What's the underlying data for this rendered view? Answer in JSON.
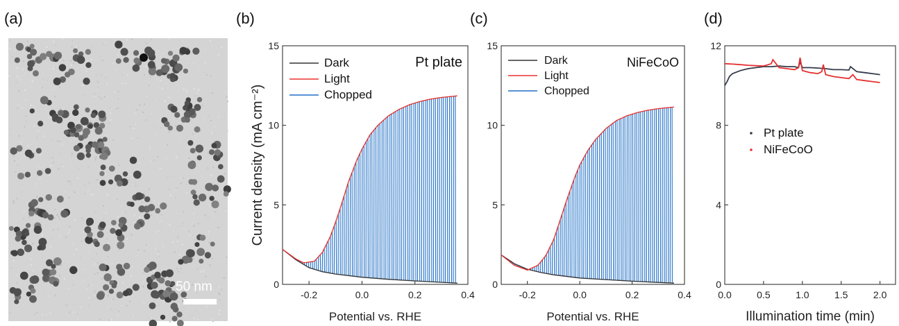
{
  "panels": {
    "a": {
      "label": "(a)",
      "scale_bar": "50 nm"
    },
    "b": {
      "label": "(b)"
    },
    "c": {
      "label": "(c)"
    },
    "d": {
      "label": "(d)"
    }
  },
  "colors": {
    "dark": "#333333",
    "light": "#e8322e",
    "chopped": "#1f6fc5",
    "pt": "#333a48",
    "nife": "#e52f2f"
  },
  "chart_data": [
    {
      "type": "line",
      "panel": "b",
      "annotation": "Pt plate",
      "xlabel": "Potential vs. RHE",
      "ylabel": "Current density (mA cm⁻²)",
      "xlim": [
        -0.3,
        0.4
      ],
      "ylim": [
        0,
        15
      ],
      "xticks": [
        -0.2,
        0.0,
        0.2,
        0.4
      ],
      "yticks": [
        0,
        5,
        10,
        15
      ],
      "xtick_labels": [
        "-0.2",
        "0.0",
        "0.2",
        "0.4"
      ],
      "ytick_labels": [
        "0",
        "5",
        "10",
        "15"
      ],
      "legend": [
        "Dark",
        "Light",
        "Chopped"
      ],
      "legend_position": "top-left",
      "series": [
        {
          "name": "Dark",
          "x": [
            -0.3,
            -0.25,
            -0.2,
            -0.15,
            -0.1,
            0.0,
            0.1,
            0.2,
            0.3,
            0.36
          ],
          "y": [
            2.2,
            1.55,
            1.05,
            0.8,
            0.65,
            0.45,
            0.32,
            0.22,
            0.13,
            0.08
          ]
        },
        {
          "name": "Light",
          "x": [
            -0.3,
            -0.25,
            -0.22,
            -0.18,
            -0.15,
            -0.12,
            -0.1,
            -0.08,
            -0.05,
            -0.02,
            0.0,
            0.03,
            0.06,
            0.1,
            0.14,
            0.18,
            0.22,
            0.26,
            0.3,
            0.36
          ],
          "y": [
            2.2,
            1.6,
            1.35,
            1.45,
            2.0,
            3.0,
            3.9,
            4.9,
            6.5,
            7.8,
            8.5,
            9.4,
            10.0,
            10.6,
            11.0,
            11.3,
            11.5,
            11.65,
            11.75,
            11.85
          ]
        },
        {
          "name": "Chopped",
          "x_range": [
            -0.3,
            0.36
          ],
          "cycles": 44,
          "envelope": "Light",
          "baseline": "Dark"
        }
      ]
    },
    {
      "type": "line",
      "panel": "c",
      "annotation": "NiFeCoO",
      "xlabel": "Potential vs. RHE",
      "xlim": [
        -0.3,
        0.4
      ],
      "ylim": [
        0,
        15
      ],
      "xticks": [
        -0.2,
        0.0,
        0.2,
        0.4
      ],
      "yticks": [
        0,
        5,
        10,
        15
      ],
      "xtick_labels": [
        "-0.2",
        "0.0",
        "0.2",
        "0.4"
      ],
      "ytick_labels": [
        "0",
        "5",
        "10",
        "15"
      ],
      "legend": [
        "Dark",
        "Light",
        "Chopped"
      ],
      "legend_position": "top-left",
      "series": [
        {
          "name": "Dark",
          "x": [
            -0.3,
            -0.25,
            -0.2,
            -0.15,
            -0.1,
            0.0,
            0.1,
            0.2,
            0.3,
            0.36
          ],
          "y": [
            1.85,
            1.3,
            0.95,
            0.75,
            0.6,
            0.4,
            0.3,
            0.2,
            0.12,
            0.08
          ]
        },
        {
          "name": "Light",
          "x": [
            -0.3,
            -0.25,
            -0.2,
            -0.16,
            -0.13,
            -0.1,
            -0.08,
            -0.05,
            -0.02,
            0.0,
            0.03,
            0.06,
            0.1,
            0.14,
            0.18,
            0.22,
            0.26,
            0.3,
            0.36
          ],
          "y": [
            1.85,
            1.2,
            0.9,
            1.2,
            1.8,
            2.8,
            3.8,
            5.3,
            6.7,
            7.5,
            8.4,
            9.1,
            9.8,
            10.3,
            10.6,
            10.8,
            10.95,
            11.05,
            11.15
          ]
        },
        {
          "name": "Chopped",
          "x_range": [
            -0.3,
            0.36
          ],
          "cycles": 44,
          "envelope": "Light",
          "baseline": "Dark"
        }
      ]
    },
    {
      "type": "line",
      "panel": "d",
      "xlabel": "Illumination time (min)",
      "xlim": [
        0,
        2.2
      ],
      "ylim": [
        0,
        12
      ],
      "xticks": [
        0.0,
        0.5,
        1.0,
        1.5,
        2.0
      ],
      "yticks": [
        0,
        4,
        8,
        12
      ],
      "xtick_labels": [
        "0.0",
        "0.5",
        "1.0",
        "1.5",
        "2.0"
      ],
      "ytick_labels": [
        "0",
        "4",
        "8",
        "12"
      ],
      "legend": [
        "Pt plate",
        "NiFeCoO"
      ],
      "legend_position": "center-left",
      "series": [
        {
          "name": "Pt plate",
          "x": [
            0,
            0.03,
            0.06,
            0.1,
            0.2,
            0.3,
            0.4,
            0.5,
            0.6,
            0.7,
            0.8,
            0.9,
            0.95,
            0.97,
            1.0,
            1.1,
            1.2,
            1.3,
            1.4,
            1.5,
            1.6,
            1.62,
            1.7,
            1.8,
            1.9,
            2.0
          ],
          "y": [
            10.0,
            10.2,
            10.45,
            10.6,
            10.75,
            10.85,
            10.9,
            10.95,
            10.95,
            10.98,
            10.95,
            10.95,
            10.9,
            11.2,
            10.9,
            10.9,
            10.88,
            10.85,
            10.8,
            10.8,
            10.78,
            10.95,
            10.7,
            10.65,
            10.6,
            10.55
          ]
        },
        {
          "name": "NiFeCoO",
          "x": [
            0,
            0.1,
            0.2,
            0.3,
            0.4,
            0.5,
            0.6,
            0.62,
            0.7,
            0.8,
            0.9,
            0.95,
            0.97,
            1.0,
            1.1,
            1.2,
            1.25,
            1.27,
            1.3,
            1.4,
            1.5,
            1.6,
            1.65,
            1.7,
            1.8,
            1.9,
            2.0
          ],
          "y": [
            11.1,
            11.08,
            11.05,
            11.02,
            11.0,
            10.98,
            11.1,
            11.3,
            10.9,
            10.85,
            10.8,
            10.9,
            11.4,
            10.75,
            10.65,
            10.6,
            10.7,
            11.05,
            10.55,
            10.45,
            10.4,
            10.35,
            10.55,
            10.3,
            10.25,
            10.2,
            10.15
          ]
        }
      ]
    }
  ]
}
